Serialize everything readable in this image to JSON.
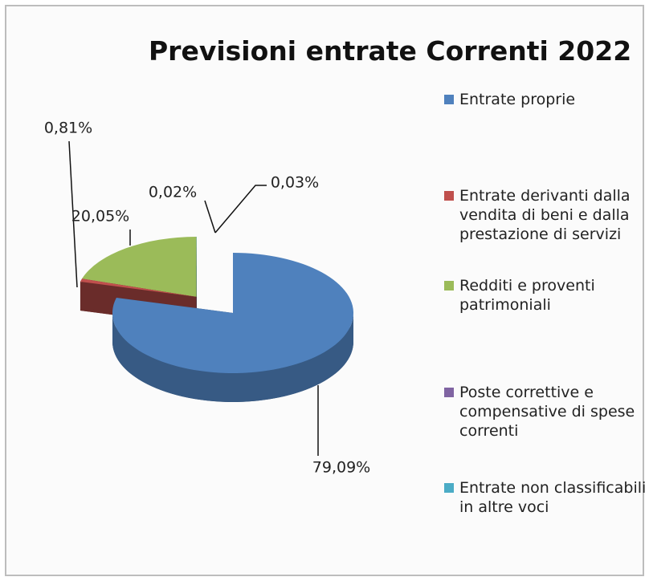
{
  "chart_data": {
    "type": "pie",
    "title": "Previsioni entrate Correnti 2022",
    "categories": [
      "Entrate proprie",
      "Entrate derivanti dalla vendita di beni e dalla prestazione di servizi",
      "Redditi e proventi patrimoniali",
      "Poste correttive e compensative di spese correnti",
      "Entrate non classificabili in altre voci"
    ],
    "values": [
      79.09,
      0.81,
      20.05,
      0.02,
      0.03
    ],
    "value_labels": [
      "79,09%",
      "0,81%",
      "20,05%",
      "0,02%",
      "0,03%"
    ],
    "colors": [
      "#4f81bd",
      "#c0504d",
      "#9bbb59",
      "#8064a2",
      "#4bacc6"
    ],
    "legend": "right"
  }
}
